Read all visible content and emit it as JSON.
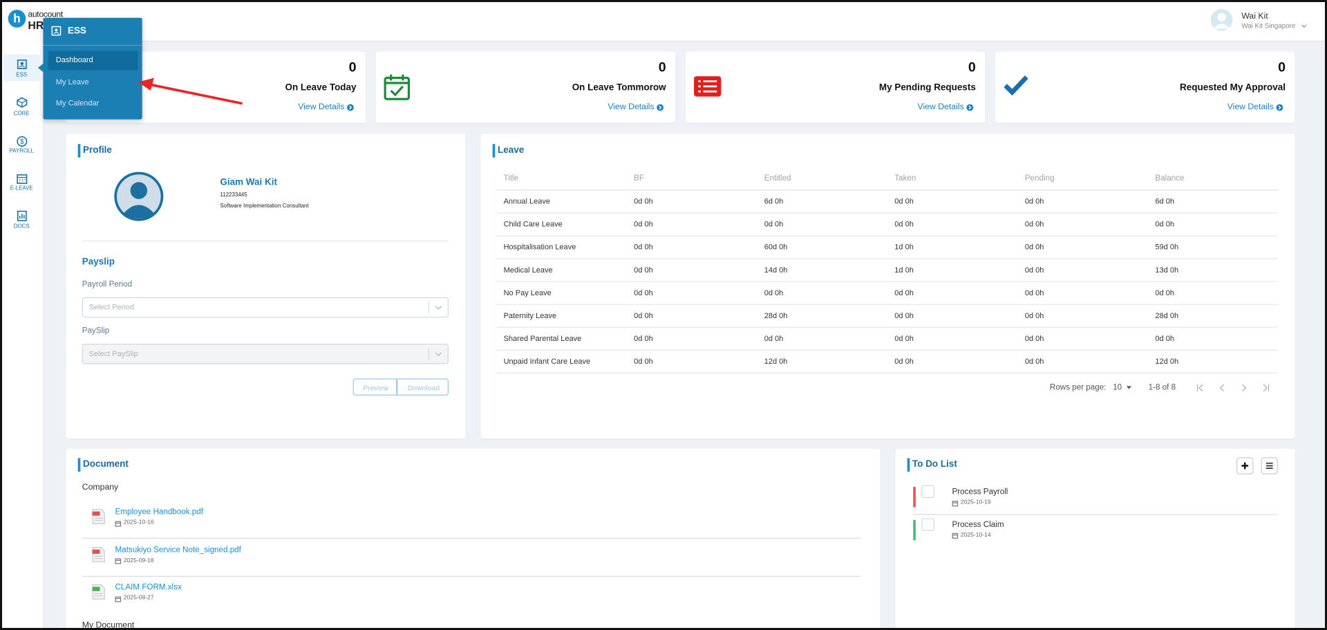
{
  "brand": {
    "top": "autocount",
    "bottom": "HR"
  },
  "user": {
    "name": "Wai Kit",
    "company": "Wai Kit Singapore"
  },
  "sidebar": [
    {
      "label": "ESS"
    },
    {
      "label": "CORE"
    },
    {
      "label": "PAYROLL"
    },
    {
      "label": "E-LEAVE"
    },
    {
      "label": "DOCS"
    }
  ],
  "menu": {
    "title": "ESS",
    "items": [
      "Dashboard",
      "My Leave",
      "My Calendar"
    ]
  },
  "stats": [
    {
      "value": 0,
      "label": "On Leave Today",
      "link": "View Details"
    },
    {
      "value": 0,
      "label": "On Leave Tommorow",
      "link": "View Details"
    },
    {
      "value": 0,
      "label": "My Pending Requests",
      "link": "View Details"
    },
    {
      "value": 0,
      "label": "Requested My Approval",
      "link": "View Details"
    }
  ],
  "profile": {
    "heading": "Profile",
    "name": "Giam Wai Kit",
    "id": "112233445",
    "position": "Software Implementation Consultant"
  },
  "payslip": {
    "heading": "Payslip",
    "period_label": "Payroll Period",
    "period_placeholder": "Select Period",
    "payslip_label": "PaySlip",
    "payslip_placeholder": "Select PaySlip",
    "buttons": [
      "Preview",
      "Download"
    ]
  },
  "leave": {
    "heading": "Leave",
    "columns": [
      "Title",
      "BF",
      "Entitled",
      "Taken",
      "Pending",
      "Balance"
    ],
    "rows": [
      [
        "Annual Leave",
        "0d 0h",
        "6d 0h",
        "0d 0h",
        "0d 0h",
        "6d 0h"
      ],
      [
        "Child Care Leave",
        "0d 0h",
        "0d 0h",
        "0d 0h",
        "0d 0h",
        "0d 0h"
      ],
      [
        "Hospitalisation Leave",
        "0d 0h",
        "60d 0h",
        "1d 0h",
        "0d 0h",
        "59d 0h"
      ],
      [
        "Medical Leave",
        "0d 0h",
        "14d 0h",
        "1d 0h",
        "0d 0h",
        "13d 0h"
      ],
      [
        "No Pay Leave",
        "0d 0h",
        "0d 0h",
        "0d 0h",
        "0d 0h",
        "0d 0h"
      ],
      [
        "Paternity Leave",
        "0d 0h",
        "28d 0h",
        "0d 0h",
        "0d 0h",
        "28d 0h"
      ],
      [
        "Shared Parental Leave",
        "0d 0h",
        "0d 0h",
        "0d 0h",
        "0d 0h",
        "0d 0h"
      ],
      [
        "Unpaid Infant Care Leave",
        "0d 0h",
        "12d 0h",
        "0d 0h",
        "0d 0h",
        "12d 0h"
      ]
    ],
    "rows_per_page_label": "Rows per page:",
    "rows_per_page": 10,
    "range": "1-8 of 8"
  },
  "document": {
    "heading": "Document",
    "company_heading": "Company",
    "files": [
      {
        "name": "Employee Handbook.pdf",
        "date": "2025-10-16",
        "icon_color": "#e05252"
      },
      {
        "name": "Matsukiyo Service Note_signed.pdf",
        "date": "2025-09-18",
        "icon_color": "#e05252"
      },
      {
        "name": "CLAIM FORM.xlsx",
        "date": "2025-08-27",
        "icon_color": "#4caf50"
      }
    ],
    "my_heading": "My Document"
  },
  "todo": {
    "heading": "To Do List",
    "items": [
      {
        "title": "Process Payroll",
        "date": "2025-10-19",
        "color": "#e85555"
      },
      {
        "title": "Process Claim",
        "date": "2025-10-14",
        "color": "#3cc27a"
      }
    ]
  }
}
